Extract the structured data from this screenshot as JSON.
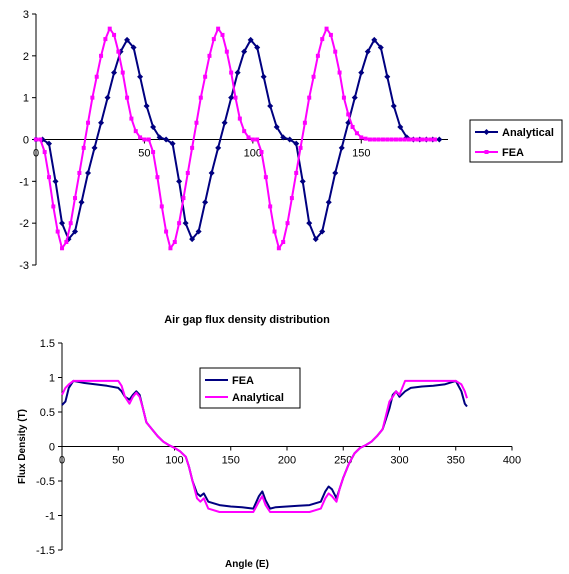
{
  "chart_data": [
    {
      "type": "line",
      "title": "",
      "xlabel": "",
      "ylabel": "",
      "xlim": [
        0,
        190
      ],
      "ylim": [
        -3,
        3
      ],
      "x_ticks": [
        "0",
        "50",
        "100",
        "150"
      ],
      "y_ticks": [
        "-3",
        "-2",
        "-1",
        "0",
        "1",
        "2",
        "3"
      ],
      "legend": "right",
      "grid": false,
      "series": [
        {
          "name": "Analytical",
          "color": "#000080",
          "marker": "diamond",
          "x": [
            0,
            3,
            6,
            9,
            12,
            15,
            18,
            21,
            24,
            27,
            30,
            33,
            36,
            39,
            42,
            45,
            48,
            51,
            54,
            57,
            60,
            63,
            66,
            69,
            72,
            75,
            78,
            81,
            84,
            87,
            90,
            93,
            96,
            99,
            102,
            105,
            108,
            111,
            114,
            117,
            120,
            123,
            126,
            129,
            132,
            135,
            138,
            141,
            144,
            147,
            150,
            153,
            156,
            159,
            162,
            165,
            168,
            171,
            174,
            177,
            180,
            183,
            186
          ],
          "y": [
            0,
            0,
            -0.1,
            -1.0,
            -2.0,
            -2.38,
            -2.2,
            -1.5,
            -0.8,
            -0.2,
            0.4,
            1.0,
            1.6,
            2.1,
            2.38,
            2.2,
            1.5,
            0.8,
            0.3,
            0.05,
            0,
            -0.1,
            -1.0,
            -2.0,
            -2.38,
            -2.2,
            -1.5,
            -0.8,
            -0.2,
            0.4,
            1.0,
            1.6,
            2.1,
            2.38,
            2.2,
            1.5,
            0.8,
            0.3,
            0.05,
            0,
            -0.1,
            -1.0,
            -2.0,
            -2.38,
            -2.2,
            -1.5,
            -0.8,
            -0.2,
            0.4,
            1.0,
            1.6,
            2.1,
            2.38,
            2.2,
            1.5,
            0.8,
            0.3,
            0.05,
            0,
            0,
            0,
            0,
            0
          ]
        },
        {
          "name": "FEA",
          "color": "#ff00ff",
          "marker": "square",
          "x": [
            0,
            2,
            4,
            6,
            8,
            10,
            12,
            14,
            16,
            18,
            20,
            22,
            24,
            26,
            28,
            30,
            32,
            34,
            36,
            38,
            40,
            42,
            44,
            46,
            48,
            50,
            52,
            54,
            56,
            58,
            60,
            62,
            64,
            66,
            68,
            70,
            72,
            74,
            76,
            78,
            80,
            82,
            84,
            86,
            88,
            90,
            92,
            94,
            96,
            98,
            100,
            102,
            104,
            106,
            108,
            110,
            112,
            114,
            116,
            118,
            120,
            122,
            124,
            126,
            128,
            130,
            132,
            134,
            136,
            138,
            140,
            142,
            144,
            146,
            148,
            150,
            152,
            154,
            156,
            158,
            160,
            162,
            164,
            166,
            168,
            170,
            172,
            174,
            176,
            178,
            180,
            182,
            184
          ],
          "y": [
            0,
            0,
            -0.3,
            -0.9,
            -1.6,
            -2.2,
            -2.6,
            -2.45,
            -2.0,
            -1.4,
            -0.8,
            -0.2,
            0.4,
            1.0,
            1.5,
            2.0,
            2.4,
            2.65,
            2.5,
            2.1,
            1.6,
            1.0,
            0.5,
            0.2,
            0.05,
            0,
            0,
            -0.3,
            -0.9,
            -1.6,
            -2.2,
            -2.6,
            -2.45,
            -2.0,
            -1.4,
            -0.8,
            -0.2,
            0.4,
            1.0,
            1.5,
            2.0,
            2.4,
            2.65,
            2.5,
            2.1,
            1.6,
            1.0,
            0.5,
            0.2,
            0.05,
            0,
            0,
            -0.3,
            -0.9,
            -1.6,
            -2.2,
            -2.6,
            -2.45,
            -2.0,
            -1.4,
            -0.8,
            -0.2,
            0.4,
            1.0,
            1.5,
            2.0,
            2.4,
            2.65,
            2.5,
            2.1,
            1.6,
            1.0,
            0.6,
            0.3,
            0.15,
            0.05,
            0.02,
            0,
            0,
            0,
            0,
            0,
            0,
            0,
            0,
            0,
            0,
            0,
            0,
            0,
            0,
            0,
            0
          ]
        }
      ]
    },
    {
      "type": "line",
      "title": "Air gap flux density distribution",
      "xlabel": "Angle (E)",
      "ylabel": "Flux Density (T)",
      "xlim": [
        0,
        400
      ],
      "ylim": [
        -1.5,
        1.5
      ],
      "x_ticks": [
        "0",
        "50",
        "100",
        "150",
        "200",
        "250",
        "300",
        "350",
        "400"
      ],
      "y_ticks": [
        "-1.5",
        "-1",
        "-0.5",
        "0",
        "0.5",
        "1",
        "1.5"
      ],
      "legend": "top-left",
      "grid": false,
      "series": [
        {
          "name": "FEA",
          "color": "#000080",
          "x": [
            0,
            3,
            6,
            10,
            20,
            30,
            40,
            50,
            53,
            56,
            60,
            63,
            66,
            69,
            72,
            75,
            80,
            85,
            90,
            95,
            100,
            105,
            110,
            113,
            116,
            120,
            123,
            126,
            130,
            140,
            150,
            160,
            170,
            175,
            178,
            181,
            185,
            190,
            200,
            210,
            220,
            230,
            234,
            237,
            240,
            244,
            247,
            250,
            255,
            260,
            265,
            270,
            275,
            280,
            285,
            288,
            291,
            294,
            297,
            300,
            305,
            310,
            320,
            330,
            340,
            350,
            355,
            358,
            360
          ],
          "y": [
            0.6,
            0.65,
            0.85,
            0.95,
            0.92,
            0.9,
            0.88,
            0.85,
            0.8,
            0.72,
            0.68,
            0.75,
            0.8,
            0.75,
            0.55,
            0.35,
            0.25,
            0.15,
            0.07,
            0.02,
            -0.02,
            -0.07,
            -0.15,
            -0.3,
            -0.5,
            -0.68,
            -0.72,
            -0.68,
            -0.8,
            -0.85,
            -0.87,
            -0.88,
            -0.9,
            -0.72,
            -0.65,
            -0.78,
            -0.9,
            -0.88,
            -0.87,
            -0.86,
            -0.85,
            -0.8,
            -0.65,
            -0.58,
            -0.62,
            -0.75,
            -0.6,
            -0.45,
            -0.25,
            -0.1,
            -0.02,
            0.02,
            0.07,
            0.15,
            0.25,
            0.4,
            0.55,
            0.75,
            0.8,
            0.72,
            0.8,
            0.85,
            0.87,
            0.88,
            0.9,
            0.95,
            0.8,
            0.62,
            0.58
          ]
        },
        {
          "name": "Analytical",
          "color": "#ff00ff",
          "x": [
            0,
            3,
            6,
            10,
            20,
            30,
            40,
            50,
            53,
            56,
            60,
            63,
            66,
            69,
            72,
            75,
            80,
            85,
            90,
            95,
            100,
            105,
            110,
            113,
            116,
            120,
            123,
            126,
            130,
            140,
            150,
            160,
            170,
            175,
            178,
            181,
            185,
            190,
            200,
            210,
            220,
            230,
            234,
            237,
            240,
            244,
            247,
            250,
            255,
            260,
            265,
            270,
            275,
            280,
            285,
            288,
            291,
            294,
            297,
            300,
            305,
            310,
            320,
            330,
            340,
            350,
            355,
            358,
            360
          ],
          "y": [
            0.75,
            0.85,
            0.9,
            0.95,
            0.95,
            0.95,
            0.95,
            0.95,
            0.88,
            0.72,
            0.62,
            0.72,
            0.78,
            0.72,
            0.55,
            0.35,
            0.25,
            0.15,
            0.07,
            0.02,
            -0.02,
            -0.07,
            -0.15,
            -0.3,
            -0.5,
            -0.75,
            -0.8,
            -0.75,
            -0.9,
            -0.95,
            -0.95,
            -0.95,
            -0.95,
            -0.8,
            -0.72,
            -0.85,
            -0.95,
            -0.95,
            -0.95,
            -0.95,
            -0.95,
            -0.9,
            -0.75,
            -0.68,
            -0.72,
            -0.8,
            -0.6,
            -0.45,
            -0.25,
            -0.1,
            -0.02,
            0.02,
            0.07,
            0.15,
            0.25,
            0.45,
            0.65,
            0.72,
            0.8,
            0.75,
            0.95,
            0.95,
            0.95,
            0.95,
            0.95,
            0.95,
            0.9,
            0.8,
            0.7
          ]
        }
      ]
    }
  ]
}
